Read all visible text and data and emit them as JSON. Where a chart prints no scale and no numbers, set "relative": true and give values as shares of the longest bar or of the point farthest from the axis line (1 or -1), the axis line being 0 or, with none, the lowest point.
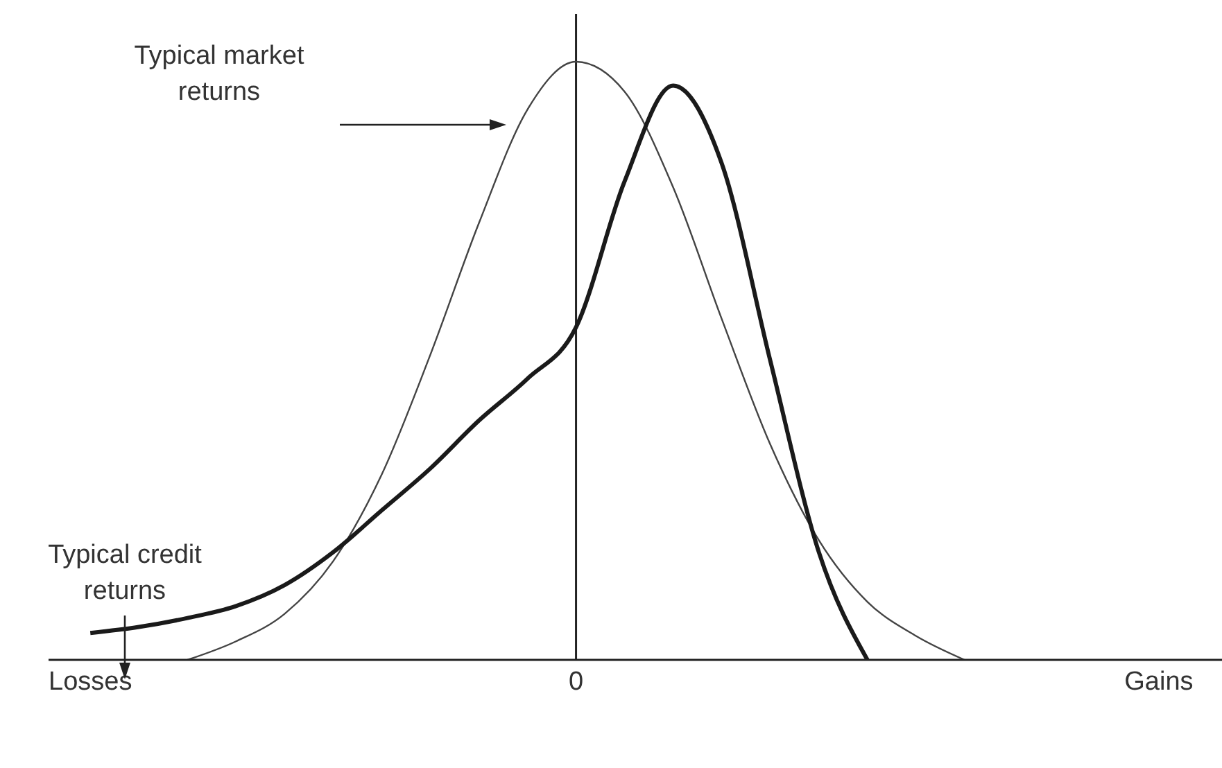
{
  "chart_data": {
    "type": "line",
    "relative": true,
    "marker": "none",
    "categories": [
      "Losses",
      null,
      null,
      null,
      null,
      null,
      null,
      null,
      null,
      null,
      "0",
      null,
      null,
      null,
      null,
      null,
      null,
      null,
      null,
      null,
      null,
      null,
      "Gains"
    ],
    "series": [
      {
        "color": "#444444",
        "values": [
          null,
          null,
          0,
          0.031,
          0.077,
          0.165,
          0.31,
          0.51,
          0.73,
          0.92,
          1,
          0.95,
          0.79,
          0.57,
          0.36,
          0.2,
          0.097,
          0.04,
          0,
          null,
          null,
          null,
          null
        ]
      },
      {
        "color": "#1a1a1a",
        "values": [
          0.045,
          0.055,
          0.07,
          0.09,
          0.125,
          0.18,
          0.25,
          0.32,
          0.4,
          0.47,
          0.556,
          0.8,
          0.96,
          0.83,
          0.5,
          0.18,
          0,
          null,
          null,
          null,
          null,
          null,
          null
        ]
      }
    ],
    "ref_lines": [
      {
        "axis": "x",
        "value": "0"
      }
    ],
    "annotations": [
      "Typical market returns",
      "Typical credit returns"
    ]
  }
}
